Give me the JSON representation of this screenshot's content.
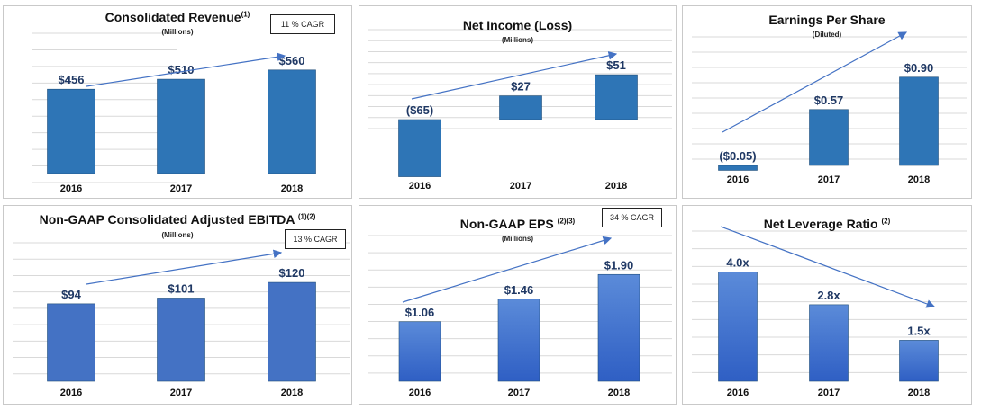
{
  "colors": {
    "bar_dark": "#2e75b6",
    "bar_light": "#4472c4",
    "grad_top": "#5b8bd9",
    "grad_bottom": "#2f5fc4",
    "arrow": "#4472c4",
    "grid": "#d9d9d9"
  },
  "panels": {
    "revenue": {
      "title": "Consolidated Revenue",
      "sup": "(1)",
      "subtitle": "(Millions)",
      "cagr": "11 % CAGR"
    },
    "net_income": {
      "title": "Net Income (Loss)",
      "sup": "",
      "subtitle": "(Millions)"
    },
    "eps": {
      "title": "Earnings Per Share",
      "sup": "",
      "subtitle": "(Diluted)"
    },
    "ebitda": {
      "title": "Non-GAAP Consolidated Adjusted EBITDA ",
      "sup": "(1)(2)",
      "subtitle": "(Millions)",
      "cagr": "13 % CAGR"
    },
    "nongaap_eps": {
      "title": "Non-GAAP EPS ",
      "sup": "(2)(3)",
      "subtitle": "(Millions)",
      "cagr": "34 % CAGR"
    },
    "leverage": {
      "title": "Net Leverage Ratio ",
      "sup": "(2)",
      "subtitle": ""
    }
  },
  "chart_data": [
    {
      "type": "bar",
      "title": "Consolidated Revenue",
      "subtitle": "(Millions)",
      "annotation": "11 % CAGR",
      "categories": [
        "2016",
        "2017",
        "2018"
      ],
      "values": [
        456,
        510,
        560
      ],
      "labels": [
        "$456",
        "$510",
        "$560"
      ],
      "ylim": [
        0,
        700
      ],
      "grid": true,
      "trend_arrow": "up"
    },
    {
      "type": "bar",
      "title": "Net Income (Loss)",
      "subtitle": "(Millions)",
      "categories": [
        "2016",
        "2017",
        "2018"
      ],
      "values": [
        -65,
        27,
        51
      ],
      "labels": [
        "($65)",
        "$27",
        "$51"
      ],
      "ylim": [
        -70,
        90
      ],
      "grid": true,
      "trend_arrow": "up"
    },
    {
      "type": "bar",
      "title": "Earnings Per Share",
      "subtitle": "(Diluted)",
      "categories": [
        "2016",
        "2017",
        "2018"
      ],
      "values": [
        -0.05,
        0.57,
        0.9
      ],
      "labels": [
        "($0.05)",
        "$0.57",
        "$0.90"
      ],
      "ylim": [
        -0.1,
        1.2
      ],
      "grid": true,
      "trend_arrow": "up"
    },
    {
      "type": "bar",
      "title": "Non-GAAP Consolidated Adjusted EBITDA",
      "subtitle": "(Millions)",
      "annotation": "13 % CAGR",
      "categories": [
        "2016",
        "2017",
        "2018"
      ],
      "values": [
        94,
        101,
        120
      ],
      "labels": [
        "$94",
        "$101",
        "$120"
      ],
      "ylim": [
        0,
        155
      ],
      "grid": true,
      "trend_arrow": "up"
    },
    {
      "type": "bar",
      "title": "Non-GAAP EPS",
      "subtitle": "(Millions)",
      "annotation": "34 % CAGR",
      "categories": [
        "2016",
        "2017",
        "2018"
      ],
      "values": [
        1.06,
        1.46,
        1.9
      ],
      "labels": [
        "$1.06",
        "$1.46",
        "$1.90"
      ],
      "ylim": [
        0,
        2.4
      ],
      "grid": true,
      "trend_arrow": "up"
    },
    {
      "type": "bar",
      "title": "Net Leverage Ratio",
      "categories": [
        "2016",
        "2017",
        "2018"
      ],
      "values": [
        4.0,
        2.8,
        1.5
      ],
      "labels": [
        "4.0x",
        "2.8x",
        "1.5x"
      ],
      "ylim": [
        0,
        5.1
      ],
      "grid": true,
      "trend_arrow": "down"
    }
  ]
}
